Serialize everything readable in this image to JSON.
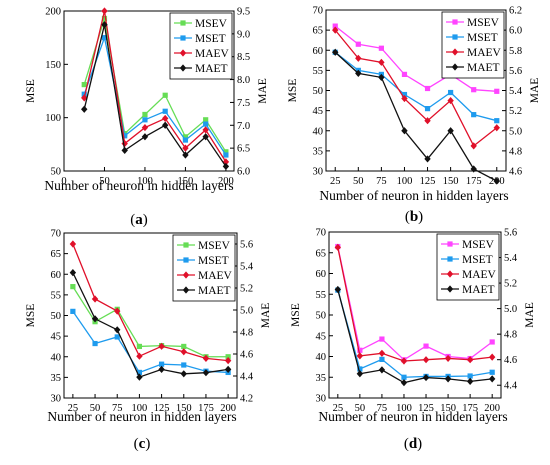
{
  "chart_data": [
    {
      "type": "line",
      "panel_label": "(a)",
      "xlabel": "Number of neuron in hidden layers",
      "ylabel_left": "MSE",
      "ylabel_right": "MAE",
      "xlim": [
        0,
        210
      ],
      "ylim_left": [
        50,
        200
      ],
      "ylim_right": [
        6.0,
        9.5
      ],
      "xticks": [
        0,
        50,
        100,
        150,
        200
      ],
      "yticks_left": [
        50,
        100,
        150,
        200
      ],
      "yticks_right": [
        "6.0",
        "6.5",
        "7.0",
        "7.5",
        "8.0",
        "8.5",
        "9.0",
        "9.5"
      ],
      "grid": false,
      "legend_position": "top-right",
      "x": [
        25,
        50,
        75,
        100,
        125,
        150,
        175,
        200
      ],
      "series": [
        {
          "name": "MSEV",
          "axis": "left",
          "color": "#66dd55",
          "marker": "square",
          "values": [
            131,
            193,
            85,
            103,
            121,
            82,
            98,
            68
          ]
        },
        {
          "name": "MSET",
          "axis": "left",
          "color": "#1e9bee",
          "marker": "square",
          "values": [
            122,
            175,
            83,
            98,
            106,
            79,
            94,
            65
          ]
        },
        {
          "name": "MAEV",
          "axis": "right",
          "color": "#e0102a",
          "marker": "diamond",
          "values": [
            7.6,
            9.5,
            6.6,
            6.95,
            7.15,
            6.5,
            6.9,
            6.2
          ]
        },
        {
          "name": "MAET",
          "axis": "right",
          "color": "#111111",
          "marker": "diamond",
          "values": [
            7.35,
            9.2,
            6.45,
            6.75,
            7.0,
            6.35,
            6.75,
            6.1
          ]
        }
      ]
    },
    {
      "type": "line",
      "panel_label": "(b)",
      "xlabel": "Number of neuron in hidden layers",
      "ylabel_left": "MSE",
      "ylabel_right": "MAE",
      "xlim": [
        15,
        210
      ],
      "ylim_left": [
        30,
        70
      ],
      "ylim_right": [
        4.6,
        6.2
      ],
      "xticks": [
        25,
        50,
        75,
        100,
        125,
        150,
        175,
        200
      ],
      "yticks_left": [
        30,
        35,
        40,
        45,
        50,
        55,
        60,
        65,
        70
      ],
      "yticks_right": [
        "4.6",
        "4.8",
        "5.0",
        "5.2",
        "5.4",
        "5.6",
        "5.8",
        "6.0",
        "6.2"
      ],
      "grid": false,
      "legend_position": "top-right",
      "x": [
        25,
        50,
        75,
        100,
        125,
        150,
        175,
        200
      ],
      "series": [
        {
          "name": "MSEV",
          "axis": "left",
          "color": "#ff44ff",
          "marker": "square",
          "values": [
            66,
            61.5,
            60.5,
            54,
            50.5,
            54,
            50.2,
            49.8
          ]
        },
        {
          "name": "MSET",
          "axis": "left",
          "color": "#1e9bee",
          "marker": "square",
          "values": [
            59.5,
            55,
            54,
            49,
            45.5,
            49.5,
            44,
            42.5
          ]
        },
        {
          "name": "MAEV",
          "axis": "right",
          "color": "#e0102a",
          "marker": "diamond",
          "values": [
            6.0,
            5.72,
            5.68,
            5.32,
            5.1,
            5.3,
            4.85,
            5.03
          ]
        },
        {
          "name": "MAET",
          "axis": "right",
          "color": "#111111",
          "marker": "diamond",
          "values": [
            5.78,
            5.57,
            5.53,
            5.0,
            4.72,
            5.0,
            4.62,
            4.5
          ]
        }
      ]
    },
    {
      "type": "line",
      "panel_label": "(c)",
      "xlabel": "Number of neuron in hidden layers",
      "ylabel_left": "MSE",
      "ylabel_right": "MAE",
      "xlim": [
        15,
        210
      ],
      "ylim_left": [
        30,
        70
      ],
      "ylim_right": [
        4.2,
        5.7
      ],
      "xticks": [
        25,
        50,
        75,
        100,
        125,
        150,
        175,
        200
      ],
      "yticks_left": [
        30,
        35,
        40,
        45,
        50,
        55,
        60,
        65,
        70
      ],
      "yticks_right": [
        "4.2",
        "4.4",
        "4.6",
        "4.8",
        "5.0",
        "5.2",
        "5.4",
        "5.6"
      ],
      "grid": false,
      "legend_position": "top-right",
      "x": [
        25,
        50,
        75,
        100,
        125,
        150,
        175,
        200
      ],
      "series": [
        {
          "name": "MSEV",
          "axis": "left",
          "color": "#66dd55",
          "marker": "square",
          "values": [
            57,
            48.5,
            51.5,
            42.5,
            42.7,
            42.5,
            40.0,
            40.0
          ]
        },
        {
          "name": "MSET",
          "axis": "left",
          "color": "#1e9bee",
          "marker": "square",
          "values": [
            51,
            43.2,
            44.8,
            36.2,
            38.2,
            38.0,
            36.5,
            36.2
          ]
        },
        {
          "name": "MAEV",
          "axis": "right",
          "color": "#e0102a",
          "marker": "diamond",
          "values": [
            5.6,
            5.1,
            4.99,
            4.58,
            4.67,
            4.62,
            4.56,
            4.54
          ]
        },
        {
          "name": "MAET",
          "axis": "right",
          "color": "#111111",
          "marker": "diamond",
          "values": [
            5.34,
            4.92,
            4.82,
            4.39,
            4.46,
            4.42,
            4.43,
            4.46
          ]
        }
      ]
    },
    {
      "type": "line",
      "panel_label": "(d)",
      "xlabel": "Number of neuron in hidden layers",
      "ylabel_left": "MSE",
      "ylabel_right": "MAE",
      "xlim": [
        15,
        210
      ],
      "ylim_left": [
        30,
        70
      ],
      "ylim_right": [
        4.3,
        5.6
      ],
      "xticks": [
        25,
        50,
        75,
        100,
        125,
        150,
        175,
        200
      ],
      "yticks_left": [
        30,
        35,
        40,
        45,
        50,
        55,
        60,
        65,
        70
      ],
      "yticks_right": [
        "4.4",
        "4.6",
        "4.8",
        "5.0",
        "5.2",
        "5.4",
        "5.6"
      ],
      "grid": false,
      "legend_position": "top-right",
      "x": [
        25,
        50,
        75,
        100,
        125,
        150,
        175,
        200
      ],
      "series": [
        {
          "name": "MSEV",
          "axis": "left",
          "color": "#ff44ff",
          "marker": "square",
          "values": [
            66.5,
            41.5,
            44.2,
            39.2,
            42.5,
            40.0,
            39.5,
            43.5
          ]
        },
        {
          "name": "MSET",
          "axis": "left",
          "color": "#1e9bee",
          "marker": "square",
          "values": [
            56,
            37,
            39.3,
            35.0,
            35.2,
            35.2,
            35.3,
            36.2
          ]
        },
        {
          "name": "MAEV",
          "axis": "right",
          "color": "#e0102a",
          "marker": "diamond",
          "values": [
            5.48,
            4.63,
            4.65,
            4.59,
            4.6,
            4.61,
            4.6,
            4.62
          ]
        },
        {
          "name": "MAET",
          "axis": "right",
          "color": "#111111",
          "marker": "diamond",
          "values": [
            5.15,
            4.49,
            4.52,
            4.42,
            4.46,
            4.45,
            4.43,
            4.45
          ]
        }
      ]
    }
  ]
}
